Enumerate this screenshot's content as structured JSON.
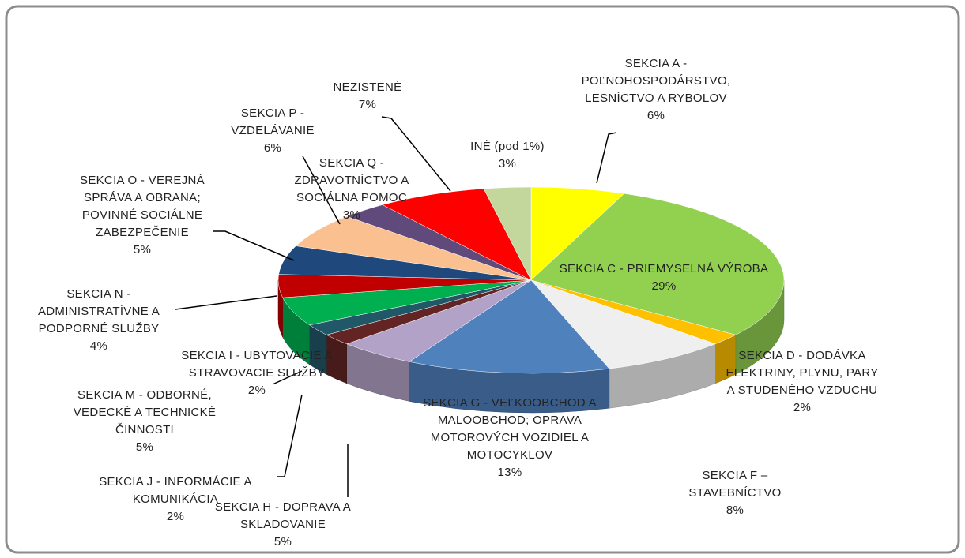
{
  "chart_data": {
    "type": "pie3d",
    "categories": [
      "SEKCIA A - POĽNOHOSPODÁRSTVO, LESNÍCTVO A RYBOLOV",
      "SEKCIA C - PRIEMYSELNÁ VÝROBA",
      "SEKCIA D - DODÁVKA ELEKTRINY, PLYNU, PARY A STUDENÉHO VZDUCHU",
      "SEKCIA F – STAVEBNÍCTVO",
      "SEKCIA G - VEĽKOOBCHOD A MALOOBCHOD; OPRAVA MOTOROVÝCH VOZIDIEL A MOTOCYKLOV",
      "SEKCIA H - DOPRAVA A SKLADOVANIE",
      "SEKCIA J - INFORMÁCIE A KOMUNIKÁCIA",
      "SEKCIA I - UBYTOVACIE A STRAVOVACIE SLUŽBY",
      "SEKCIA M - ODBORNÉ, VEDECKÉ A TECHNICKÉ ČINNOSTI",
      "SEKCIA N - ADMINISTRATÍVNE A PODPORNÉ SLUŽBY",
      "SEKCIA O - VEREJNÁ SPRÁVA A OBRANA; POVINNÉ SOCIÁLNE ZABEZPEČENIE",
      "SEKCIA P - VZDELÁVANIE",
      "SEKCIA Q - ZDRAVOTNÍCTVO A SOCIÁLNA POMOC",
      "NEZISTENÉ",
      "INÉ (pod 1%)"
    ],
    "values": [
      6,
      29,
      2,
      8,
      13,
      5,
      2,
      2,
      5,
      4,
      5,
      6,
      3,
      7,
      3
    ],
    "value_labels": [
      "6%",
      "29%",
      "2%",
      "8%",
      "13%",
      "5%",
      "2%",
      "2%",
      "5%",
      "4%",
      "5%",
      "6%",
      "3%",
      "7%",
      "3%"
    ],
    "colors": [
      "#ffff00",
      "#92d050",
      "#ffc000",
      "#efefef",
      "#4f81bd",
      "#b3a2c7",
      "#632523",
      "#215868",
      "#00b050",
      "#c00000",
      "#1f497d",
      "#fac090",
      "#604a7b",
      "#ff0000",
      "#c3d69b"
    ]
  }
}
